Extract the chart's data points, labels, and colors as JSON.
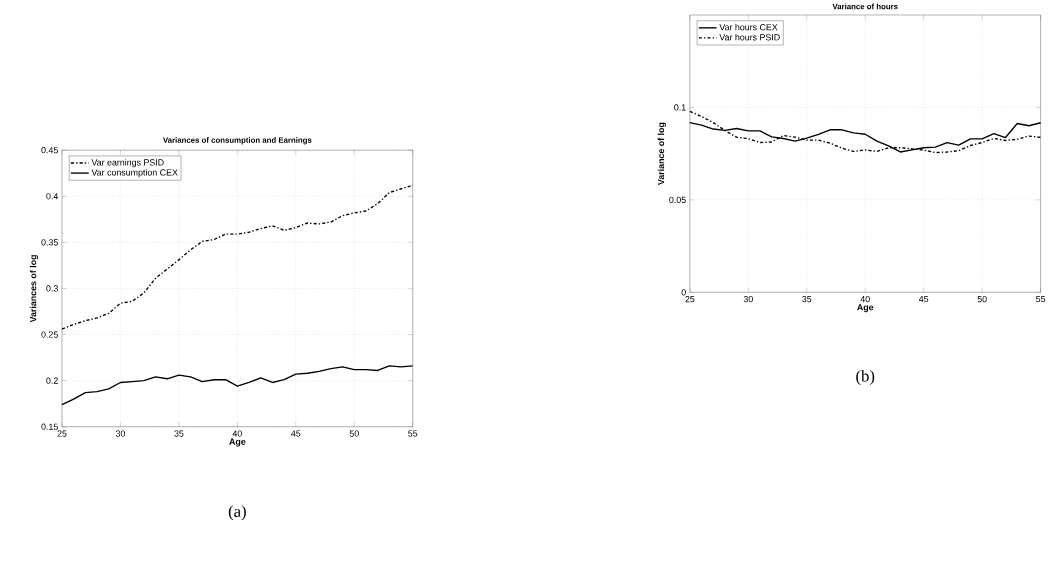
{
  "chart_data": [
    {
      "type": "line",
      "title": "Variances of consumption and Earnings",
      "xlabel": "Age",
      "ylabel": "Variances of log",
      "x": [
        25,
        26,
        27,
        28,
        29,
        30,
        31,
        32,
        33,
        34,
        35,
        36,
        37,
        38,
        39,
        40,
        41,
        42,
        43,
        44,
        45,
        46,
        47,
        48,
        49,
        50,
        51,
        52,
        53,
        54,
        55
      ],
      "series": [
        {
          "name": "Var earnings PSID",
          "color": "#000000",
          "line_style": "dashdot",
          "values": [
            0.256,
            0.261,
            0.265,
            0.268,
            0.273,
            0.284,
            0.286,
            0.295,
            0.311,
            0.321,
            0.331,
            0.342,
            0.351,
            0.353,
            0.359,
            0.359,
            0.361,
            0.365,
            0.368,
            0.363,
            0.366,
            0.371,
            0.37,
            0.372,
            0.379,
            0.382,
            0.384,
            0.392,
            0.404,
            0.408,
            0.412
          ]
        },
        {
          "name": "Var consumption CEX",
          "color": "#000000",
          "line_style": "solid",
          "values": [
            0.174,
            0.18,
            0.187,
            0.188,
            0.191,
            0.198,
            0.199,
            0.2,
            0.204,
            0.202,
            0.206,
            0.204,
            0.199,
            0.201,
            0.201,
            0.194,
            0.198,
            0.203,
            0.198,
            0.201,
            0.207,
            0.208,
            0.21,
            0.213,
            0.215,
            0.212,
            0.212,
            0.211,
            0.216,
            0.215,
            0.216
          ]
        }
      ],
      "xlim": [
        25,
        55
      ],
      "xticks": [
        25,
        30,
        35,
        40,
        45,
        50,
        55
      ],
      "ylim": [
        0.15,
        0.45
      ],
      "yticks": [
        0.15,
        0.2,
        0.25,
        0.3,
        0.35,
        0.4,
        0.45
      ],
      "grid": true,
      "legend": "top left",
      "marker": "none",
      "annotations": [
        "(a)"
      ]
    },
    {
      "type": "line",
      "title": "Variance of hours",
      "xlabel": "Age",
      "ylabel": "Variance of log",
      "x": [
        25,
        26,
        27,
        28,
        29,
        30,
        31,
        32,
        33,
        34,
        35,
        36,
        37,
        38,
        39,
        40,
        41,
        42,
        43,
        44,
        45,
        46,
        47,
        48,
        49,
        50,
        51,
        52,
        53,
        54,
        55
      ],
      "series": [
        {
          "name": "Var hours CEX",
          "color": "#000000",
          "line_style": "solid",
          "values": [
            0.0918,
            0.0904,
            0.0883,
            0.0876,
            0.0886,
            0.0873,
            0.0873,
            0.0841,
            0.0832,
            0.0818,
            0.0834,
            0.0854,
            0.0879,
            0.0879,
            0.0862,
            0.0855,
            0.0818,
            0.0792,
            0.0759,
            0.077,
            0.0782,
            0.0785,
            0.081,
            0.0796,
            0.083,
            0.083,
            0.0858,
            0.0837,
            0.0913,
            0.0901,
            0.0917
          ]
        },
        {
          "name": "Var hours PSID",
          "color": "#000000",
          "line_style": "dashdot",
          "values": [
            0.0979,
            0.0951,
            0.0918,
            0.0875,
            0.0839,
            0.0831,
            0.081,
            0.0813,
            0.0848,
            0.0839,
            0.0823,
            0.0823,
            0.0806,
            0.078,
            0.0762,
            0.077,
            0.0762,
            0.0782,
            0.0782,
            0.0776,
            0.0769,
            0.0756,
            0.0759,
            0.0766,
            0.0794,
            0.081,
            0.0832,
            0.0821,
            0.0828,
            0.0845,
            0.0838
          ]
        }
      ],
      "xlim": [
        25,
        55
      ],
      "xticks": [
        25,
        30,
        35,
        40,
        45,
        50,
        55
      ],
      "ylim": [
        0,
        0.15
      ],
      "yticks": [
        0,
        0.05,
        0.1
      ],
      "grid": true,
      "legend": "top left",
      "marker": "none",
      "annotations": [
        "(b)"
      ]
    }
  ]
}
